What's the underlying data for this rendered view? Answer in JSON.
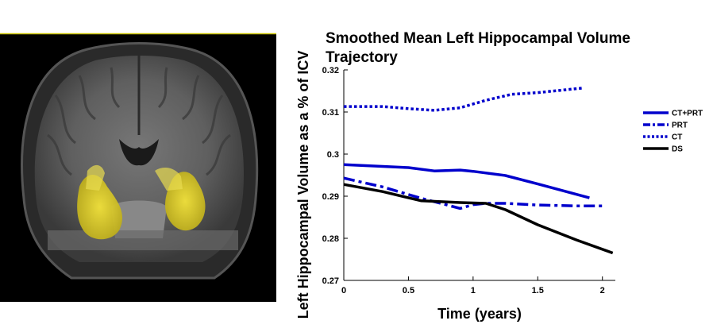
{
  "image": {
    "description": "Coronal brain MRI slice with hippocampi highlighted in yellow",
    "icon": "brain-mri-icon"
  },
  "chart_data": {
    "type": "line",
    "title_lines": [
      "Smoothed Mean Left Hippocampal Volume",
      "Trajectory"
    ],
    "xlabel": "Time (years)",
    "ylabel": "Left Hippocampal Volume as a % of ICV",
    "xlim": [
      0,
      2.1
    ],
    "ylim": [
      0.27,
      0.32
    ],
    "xticks": [
      0,
      0.5,
      1,
      1.5,
      2
    ],
    "xtick_labels": [
      "0",
      "0.5",
      "1",
      "1.5",
      "2"
    ],
    "yticks": [
      0.27,
      0.28,
      0.29,
      0.3,
      0.31,
      0.32
    ],
    "ytick_labels": [
      "0.27",
      "0.28",
      "0.29",
      "0.3",
      "0.31",
      "0.32"
    ],
    "legend_position": "right",
    "series": [
      {
        "name": "CT+PRT",
        "color": "#0000cc",
        "style": "solid",
        "x": [
          0,
          0.5,
          0.7,
          0.9,
          1.0,
          1.25,
          1.5,
          1.9
        ],
        "y": [
          0.2975,
          0.2968,
          0.296,
          0.2962,
          0.2959,
          0.2949,
          0.2929,
          0.2896
        ]
      },
      {
        "name": "PRT",
        "color": "#0000cc",
        "style": "dashdot",
        "x": [
          0,
          0.3,
          0.6,
          0.9,
          1.0,
          1.1,
          1.25,
          1.5,
          1.8,
          2.0
        ],
        "y": [
          0.2943,
          0.2922,
          0.2895,
          0.2871,
          0.288,
          0.2883,
          0.2883,
          0.2879,
          0.2877,
          0.2877
        ]
      },
      {
        "name": "CT",
        "color": "#0000cc",
        "style": "dotted",
        "x": [
          0,
          0.3,
          0.5,
          0.7,
          0.9,
          1.1,
          1.3,
          1.5,
          1.85
        ],
        "y": [
          0.3113,
          0.3113,
          0.3108,
          0.3104,
          0.311,
          0.3128,
          0.3142,
          0.3146,
          0.3157
        ]
      },
      {
        "name": "DS",
        "color": "#000000",
        "style": "solid",
        "x": [
          0,
          0.3,
          0.6,
          0.9,
          1.1,
          1.25,
          1.5,
          1.8,
          2.08
        ],
        "y": [
          0.2928,
          0.2911,
          0.2889,
          0.2885,
          0.2883,
          0.2868,
          0.2832,
          0.2796,
          0.2765
        ]
      }
    ]
  }
}
